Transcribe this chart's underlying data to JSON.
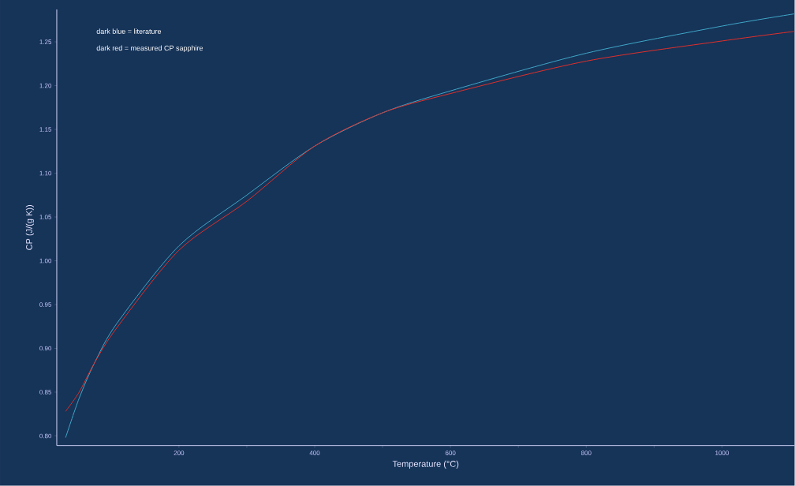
{
  "chart_data": {
    "type": "line",
    "xlabel": "Temperature (°C)",
    "ylabel": "CP (J/(g K))",
    "annotations": [
      "dark blue = literature",
      "dark red = measured CP sapphire"
    ],
    "xlim": [
      20,
      1107
    ],
    "ylim": [
      0.789,
      1.287
    ],
    "xticks": [
      {
        "value": 200,
        "label": "200"
      },
      {
        "value": 300,
        "label": null
      },
      {
        "value": 400,
        "label": "400"
      },
      {
        "value": 500,
        "label": null
      },
      {
        "value": 600,
        "label": "600"
      },
      {
        "value": 700,
        "label": null
      },
      {
        "value": 800,
        "label": "800"
      },
      {
        "value": 900,
        "label": null
      },
      {
        "value": 1000,
        "label": "1000"
      }
    ],
    "yticks": [
      {
        "value": 0.8,
        "label": "0.80"
      },
      {
        "value": 0.85,
        "label": "0.85"
      },
      {
        "value": 0.9,
        "label": "0.90"
      },
      {
        "value": 0.95,
        "label": "0.95"
      },
      {
        "value": 1.0,
        "label": "1.00"
      },
      {
        "value": 1.05,
        "label": "1.05"
      },
      {
        "value": 1.1,
        "label": "1.10"
      },
      {
        "value": 1.15,
        "label": "1.15"
      },
      {
        "value": 1.2,
        "label": "1.20"
      },
      {
        "value": 1.25,
        "label": "1.25"
      }
    ],
    "grid": false,
    "marker": "none",
    "line_style": "solid",
    "x": [
      33,
      53,
      76,
      109,
      200,
      300,
      400,
      500,
      600,
      800,
      1000,
      1107
    ],
    "series": [
      {
        "color": "#3fa8c8",
        "values": [
          0.798,
          0.843,
          0.884,
          0.929,
          1.017,
          1.075,
          1.131,
          1.169,
          1.194,
          1.237,
          1.268,
          1.282
        ]
      },
      {
        "color": "#e0302a",
        "values": [
          0.828,
          0.85,
          0.884,
          0.924,
          1.012,
          1.068,
          1.131,
          1.169,
          1.191,
          1.228,
          1.251,
          1.262
        ]
      }
    ]
  }
}
